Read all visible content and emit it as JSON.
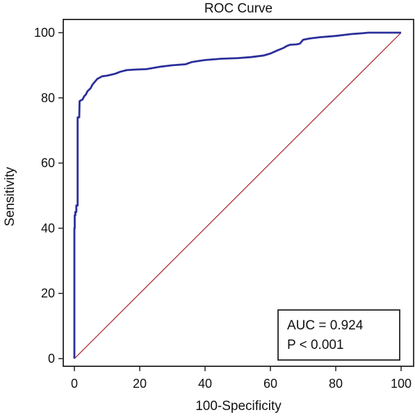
{
  "chart_data": {
    "type": "line",
    "title": "ROC Curve",
    "xlabel": "100-Specificity",
    "ylabel": "Sensitivity",
    "xlim": [
      0,
      100
    ],
    "ylim": [
      0,
      100
    ],
    "xticks": [
      0,
      20,
      40,
      60,
      80,
      100
    ],
    "yticks": [
      0,
      20,
      40,
      60,
      80,
      100
    ],
    "grid": false,
    "series": [
      {
        "role": "roc",
        "color": "#2b2f9a",
        "x": [
          0,
          0,
          0.1,
          0.1,
          0.3,
          0.3,
          0.6,
          0.6,
          1.0,
          1.0,
          1.5,
          1.6,
          2.5,
          3.0,
          3.5,
          4.0,
          5.0,
          5.5,
          7.0,
          8.5,
          10.0,
          12.5,
          14.0,
          16.0,
          19.0,
          22.0,
          26.0,
          30.0,
          34.0,
          36.0,
          38.0,
          40.0,
          45.0,
          50.0,
          54.0,
          58.0,
          60.0,
          62.0,
          64.0,
          65.0,
          66.0,
          68.0,
          69.0,
          70.0,
          72.0,
          75.0,
          80.0,
          85.0,
          88.0,
          90.0,
          95.0,
          100.0
        ],
        "y": [
          0,
          40,
          40,
          44,
          44,
          45,
          45,
          47,
          47,
          74,
          74,
          79,
          79.5,
          80.5,
          81,
          82,
          83,
          84,
          85.8,
          86.6,
          86.8,
          87.4,
          88.0,
          88.5,
          88.7,
          88.8,
          89.5,
          90.0,
          90.3,
          91.0,
          91.3,
          91.6,
          92.0,
          92.2,
          92.5,
          93.0,
          93.6,
          94.5,
          95.3,
          95.9,
          96.3,
          96.4,
          96.6,
          97.8,
          98.2,
          98.6,
          99.0,
          99.6,
          99.8,
          100.0,
          100.0,
          100.0
        ]
      },
      {
        "role": "reference",
        "color": "#a81c22",
        "x": [
          0,
          100
        ],
        "y": [
          0,
          100
        ]
      }
    ],
    "annotation": {
      "auc": "AUC = 0.924",
      "p": "P < 0.001"
    }
  }
}
